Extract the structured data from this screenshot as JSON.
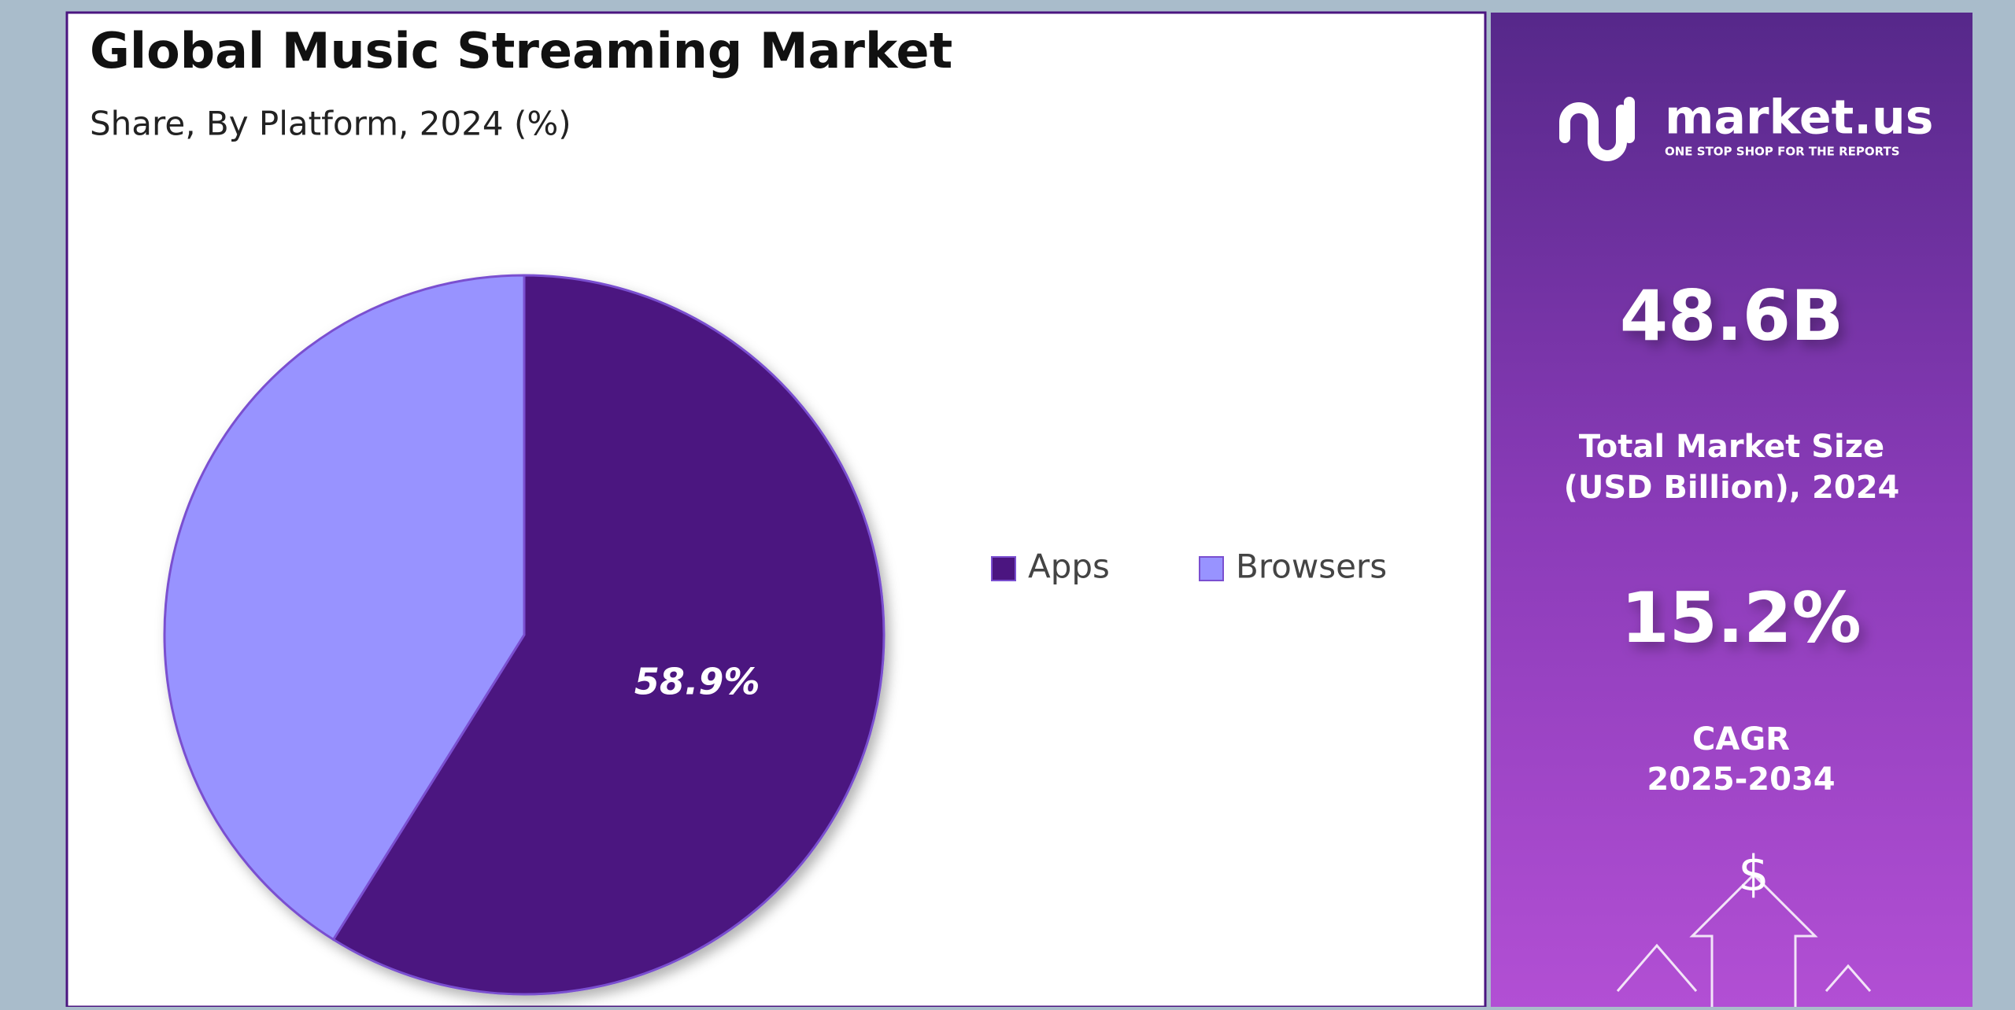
{
  "chart_data": {
    "type": "pie",
    "title": "Global Music Streaming Market",
    "subtitle": "Share, By Platform, 2024 (%)",
    "categories": [
      "Apps",
      "Browsers"
    ],
    "values": [
      58.9,
      41.1
    ],
    "value_labels": [
      "58.9%",
      null
    ],
    "colors": [
      "#4b1580",
      "#9893ff"
    ],
    "legend": "right"
  },
  "sidebar": {
    "brand": "market.us",
    "tagline": "ONE STOP SHOP FOR THE REPORTS",
    "market_size": "48.6B",
    "market_size_label": [
      "Total Market Size",
      "(USD Billion), 2024"
    ],
    "cagr": "15.2%",
    "cagr_label": [
      "CAGR",
      "2025-2034"
    ],
    "icon_symbol": "$"
  }
}
